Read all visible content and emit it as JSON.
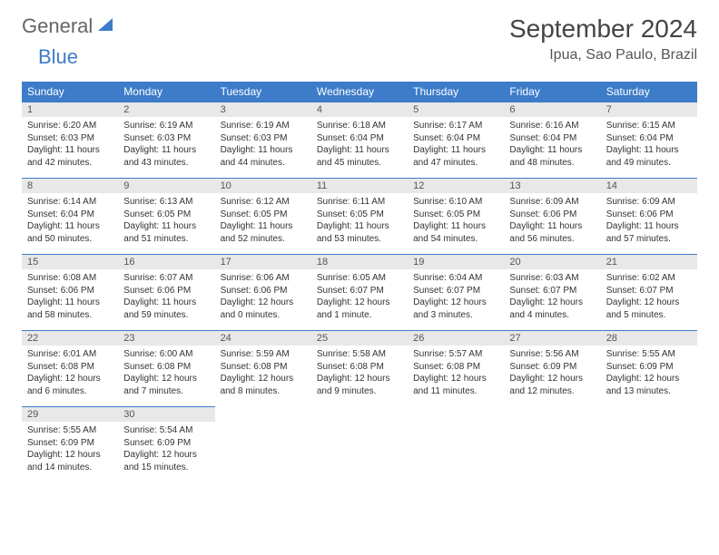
{
  "logo": {
    "general": "General",
    "blue": "Blue"
  },
  "title": "September 2024",
  "location": "Ipua, Sao Paulo, Brazil",
  "colors": {
    "header_bg": "#3d7cc9",
    "header_text": "#ffffff",
    "daynum_bg": "#e8e8e8",
    "text": "#333333",
    "border": "#3d7cc9"
  },
  "weekdays": [
    "Sunday",
    "Monday",
    "Tuesday",
    "Wednesday",
    "Thursday",
    "Friday",
    "Saturday"
  ],
  "weeks": [
    [
      {
        "n": "1",
        "sr": "Sunrise: 6:20 AM",
        "ss": "Sunset: 6:03 PM",
        "d1": "Daylight: 11 hours",
        "d2": "and 42 minutes."
      },
      {
        "n": "2",
        "sr": "Sunrise: 6:19 AM",
        "ss": "Sunset: 6:03 PM",
        "d1": "Daylight: 11 hours",
        "d2": "and 43 minutes."
      },
      {
        "n": "3",
        "sr": "Sunrise: 6:19 AM",
        "ss": "Sunset: 6:03 PM",
        "d1": "Daylight: 11 hours",
        "d2": "and 44 minutes."
      },
      {
        "n": "4",
        "sr": "Sunrise: 6:18 AM",
        "ss": "Sunset: 6:04 PM",
        "d1": "Daylight: 11 hours",
        "d2": "and 45 minutes."
      },
      {
        "n": "5",
        "sr": "Sunrise: 6:17 AM",
        "ss": "Sunset: 6:04 PM",
        "d1": "Daylight: 11 hours",
        "d2": "and 47 minutes."
      },
      {
        "n": "6",
        "sr": "Sunrise: 6:16 AM",
        "ss": "Sunset: 6:04 PM",
        "d1": "Daylight: 11 hours",
        "d2": "and 48 minutes."
      },
      {
        "n": "7",
        "sr": "Sunrise: 6:15 AM",
        "ss": "Sunset: 6:04 PM",
        "d1": "Daylight: 11 hours",
        "d2": "and 49 minutes."
      }
    ],
    [
      {
        "n": "8",
        "sr": "Sunrise: 6:14 AM",
        "ss": "Sunset: 6:04 PM",
        "d1": "Daylight: 11 hours",
        "d2": "and 50 minutes."
      },
      {
        "n": "9",
        "sr": "Sunrise: 6:13 AM",
        "ss": "Sunset: 6:05 PM",
        "d1": "Daylight: 11 hours",
        "d2": "and 51 minutes."
      },
      {
        "n": "10",
        "sr": "Sunrise: 6:12 AM",
        "ss": "Sunset: 6:05 PM",
        "d1": "Daylight: 11 hours",
        "d2": "and 52 minutes."
      },
      {
        "n": "11",
        "sr": "Sunrise: 6:11 AM",
        "ss": "Sunset: 6:05 PM",
        "d1": "Daylight: 11 hours",
        "d2": "and 53 minutes."
      },
      {
        "n": "12",
        "sr": "Sunrise: 6:10 AM",
        "ss": "Sunset: 6:05 PM",
        "d1": "Daylight: 11 hours",
        "d2": "and 54 minutes."
      },
      {
        "n": "13",
        "sr": "Sunrise: 6:09 AM",
        "ss": "Sunset: 6:06 PM",
        "d1": "Daylight: 11 hours",
        "d2": "and 56 minutes."
      },
      {
        "n": "14",
        "sr": "Sunrise: 6:09 AM",
        "ss": "Sunset: 6:06 PM",
        "d1": "Daylight: 11 hours",
        "d2": "and 57 minutes."
      }
    ],
    [
      {
        "n": "15",
        "sr": "Sunrise: 6:08 AM",
        "ss": "Sunset: 6:06 PM",
        "d1": "Daylight: 11 hours",
        "d2": "and 58 minutes."
      },
      {
        "n": "16",
        "sr": "Sunrise: 6:07 AM",
        "ss": "Sunset: 6:06 PM",
        "d1": "Daylight: 11 hours",
        "d2": "and 59 minutes."
      },
      {
        "n": "17",
        "sr": "Sunrise: 6:06 AM",
        "ss": "Sunset: 6:06 PM",
        "d1": "Daylight: 12 hours",
        "d2": "and 0 minutes."
      },
      {
        "n": "18",
        "sr": "Sunrise: 6:05 AM",
        "ss": "Sunset: 6:07 PM",
        "d1": "Daylight: 12 hours",
        "d2": "and 1 minute."
      },
      {
        "n": "19",
        "sr": "Sunrise: 6:04 AM",
        "ss": "Sunset: 6:07 PM",
        "d1": "Daylight: 12 hours",
        "d2": "and 3 minutes."
      },
      {
        "n": "20",
        "sr": "Sunrise: 6:03 AM",
        "ss": "Sunset: 6:07 PM",
        "d1": "Daylight: 12 hours",
        "d2": "and 4 minutes."
      },
      {
        "n": "21",
        "sr": "Sunrise: 6:02 AM",
        "ss": "Sunset: 6:07 PM",
        "d1": "Daylight: 12 hours",
        "d2": "and 5 minutes."
      }
    ],
    [
      {
        "n": "22",
        "sr": "Sunrise: 6:01 AM",
        "ss": "Sunset: 6:08 PM",
        "d1": "Daylight: 12 hours",
        "d2": "and 6 minutes."
      },
      {
        "n": "23",
        "sr": "Sunrise: 6:00 AM",
        "ss": "Sunset: 6:08 PM",
        "d1": "Daylight: 12 hours",
        "d2": "and 7 minutes."
      },
      {
        "n": "24",
        "sr": "Sunrise: 5:59 AM",
        "ss": "Sunset: 6:08 PM",
        "d1": "Daylight: 12 hours",
        "d2": "and 8 minutes."
      },
      {
        "n": "25",
        "sr": "Sunrise: 5:58 AM",
        "ss": "Sunset: 6:08 PM",
        "d1": "Daylight: 12 hours",
        "d2": "and 9 minutes."
      },
      {
        "n": "26",
        "sr": "Sunrise: 5:57 AM",
        "ss": "Sunset: 6:08 PM",
        "d1": "Daylight: 12 hours",
        "d2": "and 11 minutes."
      },
      {
        "n": "27",
        "sr": "Sunrise: 5:56 AM",
        "ss": "Sunset: 6:09 PM",
        "d1": "Daylight: 12 hours",
        "d2": "and 12 minutes."
      },
      {
        "n": "28",
        "sr": "Sunrise: 5:55 AM",
        "ss": "Sunset: 6:09 PM",
        "d1": "Daylight: 12 hours",
        "d2": "and 13 minutes."
      }
    ],
    [
      {
        "n": "29",
        "sr": "Sunrise: 5:55 AM",
        "ss": "Sunset: 6:09 PM",
        "d1": "Daylight: 12 hours",
        "d2": "and 14 minutes."
      },
      {
        "n": "30",
        "sr": "Sunrise: 5:54 AM",
        "ss": "Sunset: 6:09 PM",
        "d1": "Daylight: 12 hours",
        "d2": "and 15 minutes."
      },
      null,
      null,
      null,
      null,
      null
    ]
  ]
}
